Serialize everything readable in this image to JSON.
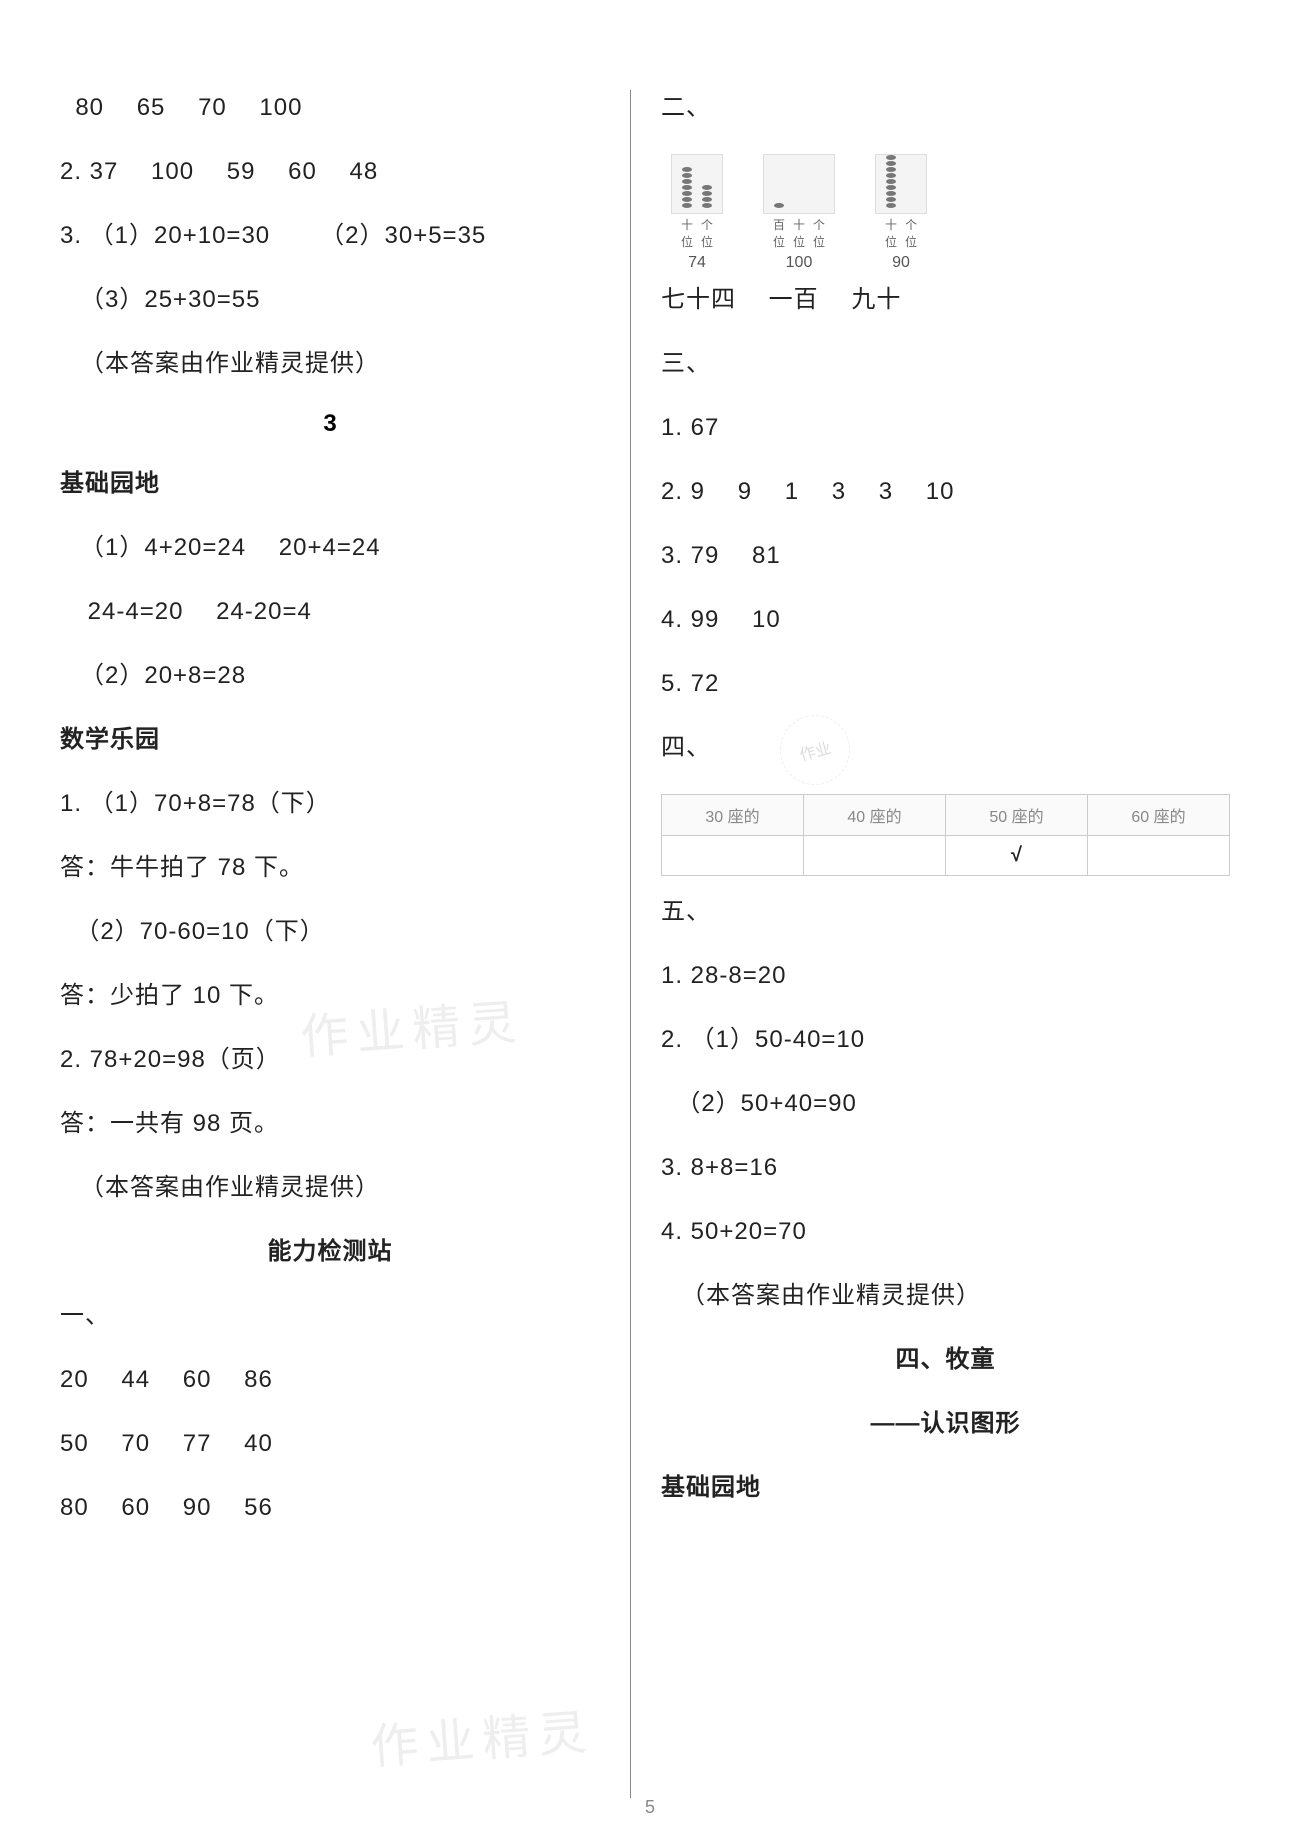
{
  "left": {
    "l1": "  80  65  70  100",
    "l2": "2. 37  100  59  60  48",
    "l3": "3. （1）20+10=30  （2）30+5=35",
    "l4": "（3）25+30=55",
    "l5": "（本答案由作业精灵提供）",
    "sec3": "3",
    "h_jc": "基础园地",
    "l6": "（1）4+20=24  20+4=24",
    "l7": " 24-4=20  24-20=4",
    "l8": "（2）20+8=28",
    "h_sx": "数学乐园",
    "l9": "1. （1）70+8=78（下）",
    "l10": "答：牛牛拍了 78 下。",
    "l11": "  （2）70-60=10（下）",
    "l12": "答：少拍了 10 下。",
    "l13": "2. 78+20=98（页）",
    "l14": "答：一共有 98 页。",
    "l15": "（本答案由作业精灵提供）",
    "h_nl": "能力检测站",
    "l16": "一、",
    "l17": "20  44  60  86",
    "l18": "50  70  77  40",
    "l19": "80  60  90  56"
  },
  "right": {
    "r1": "二、",
    "abacus": [
      {
        "cols": [
          {
            "lab": "十",
            "n": 7
          },
          {
            "lab": "个",
            "n": 4
          }
        ],
        "num": "74"
      },
      {
        "cols": [
          {
            "lab": "百",
            "n": 1
          },
          {
            "lab": "十",
            "n": 0
          },
          {
            "lab": "个",
            "n": 0
          }
        ],
        "num": "100"
      },
      {
        "cols": [
          {
            "lab": "十",
            "n": 9
          },
          {
            "lab": "个",
            "n": 0
          }
        ],
        "num": "90"
      }
    ],
    "r2": "七十四  一百  九十",
    "r3": "三、",
    "r4": "1. 67",
    "r5": "2. 9  9  1  3  3  10",
    "r6": "3. 79  81",
    "r7": "4. 99  10",
    "r8": "5. 72",
    "r9": "四、",
    "seats": {
      "headers": [
        "30 座的",
        "40 座的",
        "50 座的",
        "60 座的"
      ],
      "values": [
        "",
        "",
        "√",
        ""
      ]
    },
    "r10": "五、",
    "r11": "1. 28-8=20",
    "r12": "2. （1）50-40=10",
    "r13": "  （2）50+40=90",
    "r14": "3. 8+8=16",
    "r15": "4. 50+20=70",
    "r16": "（本答案由作业精灵提供）",
    "h_mt": "四、牧童",
    "h_rs": "——认识图形",
    "h_jc2": "基础园地"
  },
  "wm": "作业精灵",
  "stamp_text": "作业",
  "page_num": "5"
}
